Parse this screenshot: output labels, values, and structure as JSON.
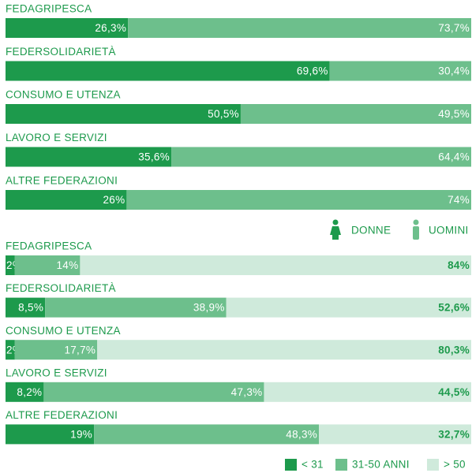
{
  "chart_data": [
    {
      "type": "bar",
      "orientation": "horizontal",
      "stacked": true,
      "categories": [
        "FEDAGRIPESCA",
        "FEDERSOLIDARIETÀ",
        "CONSUMO E UTENZA",
        "LAVORO E SERVIZI",
        "ALTRE FEDERAZIONI"
      ],
      "series": [
        {
          "name": "DONNE",
          "color": "#1d9a4c",
          "values": [
            26.3,
            69.6,
            50.5,
            35.6,
            26
          ],
          "value_labels": [
            "26,3%",
            "69,6%",
            "50,5%",
            "35,6%",
            "26%"
          ]
        },
        {
          "name": "UOMINI",
          "color": "#6dbf8c",
          "values": [
            73.7,
            30.4,
            49.5,
            64.4,
            74
          ],
          "value_labels": [
            "73,7%",
            "30,4%",
            "49,5%",
            "64,4%",
            "74%"
          ]
        }
      ]
    },
    {
      "type": "bar",
      "orientation": "horizontal",
      "stacked": true,
      "categories": [
        "FEDAGRIPESCA",
        "FEDERSOLIDARIETÀ",
        "CONSUMO E UTENZA",
        "LAVORO E SERVIZI",
        "ALTRE FEDERAZIONI"
      ],
      "series": [
        {
          "name": "< 31",
          "color": "#1d9a4c",
          "values": [
            2,
            8.5,
            2,
            8.2,
            19
          ],
          "value_labels": [
            "2%",
            "8,5%",
            "2%",
            "8,2%",
            "19%"
          ]
        },
        {
          "name": "31-50 ANNI",
          "color": "#6dbf8c",
          "values": [
            14,
            38.9,
            17.7,
            47.3,
            48.3
          ],
          "value_labels": [
            "14%",
            "38,9%",
            "17,7%",
            "47,3%",
            "48,3%"
          ]
        },
        {
          "name": "> 50",
          "color": "#cfeadb",
          "values": [
            84,
            52.6,
            80.3,
            44.5,
            32.7
          ],
          "value_labels": [
            "84%",
            "52,6%",
            "80,3%",
            "44,5%",
            "32,7%"
          ]
        }
      ]
    }
  ]
}
